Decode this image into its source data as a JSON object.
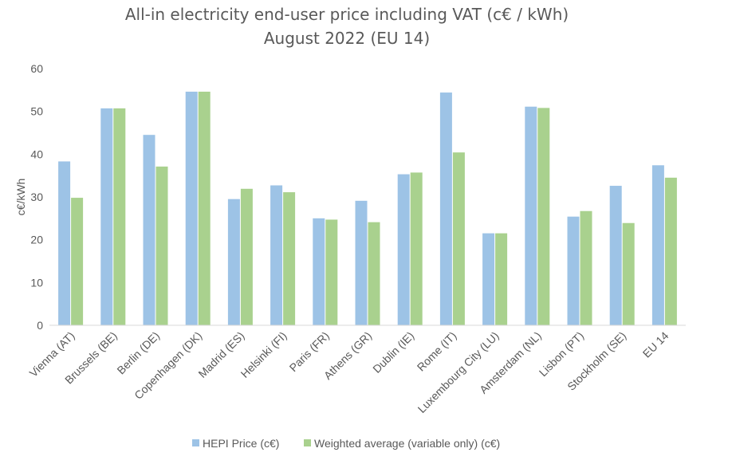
{
  "chart_data": {
    "type": "bar",
    "title": "All-in electricity end-user price including VAT (c€ / kWh)",
    "subtitle": "August 2022 (EU 14)",
    "xlabel": "",
    "ylabel": "c€/kWh",
    "ylim": [
      0,
      60
    ],
    "yticks": [
      "0",
      "10",
      "20",
      "30",
      "40",
      "50",
      "60"
    ],
    "grid": false,
    "legend_position": "bottom",
    "categories": [
      "Vienna (AT)",
      "Brussels (BE)",
      "Berlin (DE)",
      "Copenhagen (DK)",
      "Madrid (ES)",
      "Helsinki (FI)",
      "Paris (FR)",
      "Athens (GR)",
      "Dublin (IE)",
      "Rome (IT)",
      "Luxembourg City (LU)",
      "Amsterdam (NL)",
      "Lisbon (PT)",
      "Stockholm (SE)",
      "EU 14"
    ],
    "series": [
      {
        "name": "HEPI Price (c€)",
        "color": "#9DC3E6",
        "values": [
          38.3,
          50.7,
          44.5,
          54.6,
          29.5,
          32.7,
          25.0,
          29.1,
          35.3,
          54.4,
          21.5,
          51.1,
          25.4,
          32.6,
          37.4
        ]
      },
      {
        "name": "Weighted average (variable only) (c€)",
        "color": "#A9D18E",
        "values": [
          29.8,
          50.7,
          37.1,
          54.6,
          31.9,
          31.1,
          24.7,
          24.1,
          35.7,
          40.4,
          21.5,
          50.8,
          26.7,
          23.9,
          34.5
        ]
      }
    ]
  }
}
